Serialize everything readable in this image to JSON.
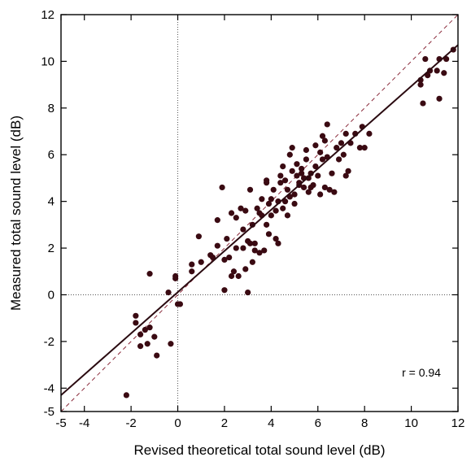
{
  "chart_data": {
    "type": "scatter",
    "title": "",
    "xlabel": "Revised theoretical total sound level (dB)",
    "ylabel": "Measured total sound level (dB)",
    "xlim": [
      -5,
      12
    ],
    "ylim": [
      -5,
      12
    ],
    "x_ticks": [
      -5,
      -4,
      -2,
      0,
      2,
      4,
      6,
      8,
      10,
      12
    ],
    "x_tick_labels": [
      "-5",
      "-4",
      "-2",
      "0",
      "2",
      "4",
      "6",
      "8",
      "10",
      "12"
    ],
    "y_ticks": [
      -5,
      -4,
      -2,
      0,
      2,
      4,
      6,
      8,
      10,
      12
    ],
    "y_tick_labels": [
      "-5",
      "-4",
      "-2",
      "0",
      "2",
      "4",
      "6",
      "8",
      "10",
      "12"
    ],
    "grid": false,
    "reference_lines": {
      "x_zero_dotted": true,
      "y_zero_dotted": true
    },
    "annotation": "r = 0.94",
    "colors": {
      "points": "#3a0a12",
      "fit_line": "#2a0a10",
      "identity_line": "#8a2a3a",
      "zero_lines": "#555555"
    },
    "fit_line": {
      "style": "solid",
      "points": [
        [
          -5,
          -4.3
        ],
        [
          12,
          10.7
        ]
      ]
    },
    "identity_line": {
      "style": "dashed",
      "points": [
        [
          -5,
          -5
        ],
        [
          12,
          12
        ]
      ]
    },
    "series": [
      {
        "points": [
          [
            -2.2,
            -4.3
          ],
          [
            -1.8,
            -1.2
          ],
          [
            -1.8,
            -0.9
          ],
          [
            -1.6,
            -1.7
          ],
          [
            -1.6,
            -2.2
          ],
          [
            -1.4,
            -1.5
          ],
          [
            -1.3,
            -2.1
          ],
          [
            -1.2,
            0.9
          ],
          [
            -1.2,
            -1.4
          ],
          [
            -1.0,
            -1.8
          ],
          [
            -0.9,
            -2.6
          ],
          [
            -0.4,
            0.1
          ],
          [
            -0.3,
            -2.1
          ],
          [
            -0.1,
            0.8
          ],
          [
            -0.1,
            0.7
          ],
          [
            0.0,
            -0.4
          ],
          [
            0.1,
            -0.4
          ],
          [
            0.6,
            1.0
          ],
          [
            0.6,
            1.3
          ],
          [
            0.9,
            2.5
          ],
          [
            1.0,
            1.4
          ],
          [
            1.4,
            1.7
          ],
          [
            1.5,
            1.6
          ],
          [
            1.7,
            3.2
          ],
          [
            1.7,
            2.1
          ],
          [
            1.9,
            4.6
          ],
          [
            2.0,
            1.5
          ],
          [
            2.0,
            0.2
          ],
          [
            2.1,
            2.4
          ],
          [
            2.2,
            1.6
          ],
          [
            2.3,
            3.5
          ],
          [
            2.3,
            0.8
          ],
          [
            2.4,
            1.0
          ],
          [
            2.5,
            2.0
          ],
          [
            2.5,
            3.3
          ],
          [
            2.6,
            0.8
          ],
          [
            2.7,
            3.7
          ],
          [
            2.8,
            2.8
          ],
          [
            2.8,
            2.0
          ],
          [
            2.9,
            3.6
          ],
          [
            2.9,
            1.1
          ],
          [
            3.0,
            0.1
          ],
          [
            3.0,
            2.3
          ],
          [
            3.1,
            2.2
          ],
          [
            3.1,
            4.5
          ],
          [
            3.2,
            1.4
          ],
          [
            3.2,
            3.0
          ],
          [
            3.3,
            1.9
          ],
          [
            3.3,
            2.2
          ],
          [
            3.4,
            3.7
          ],
          [
            3.5,
            1.8
          ],
          [
            3.5,
            3.5
          ],
          [
            3.6,
            4.1
          ],
          [
            3.6,
            3.4
          ],
          [
            3.7,
            1.9
          ],
          [
            3.8,
            4.9
          ],
          [
            3.8,
            3.0
          ],
          [
            3.8,
            4.8
          ],
          [
            3.9,
            2.6
          ],
          [
            3.9,
            3.9
          ],
          [
            4.0,
            4.1
          ],
          [
            4.0,
            3.4
          ],
          [
            4.1,
            4.5
          ],
          [
            4.2,
            3.6
          ],
          [
            4.2,
            2.4
          ],
          [
            4.3,
            2.2
          ],
          [
            4.3,
            4.0
          ],
          [
            4.4,
            5.1
          ],
          [
            4.4,
            4.8
          ],
          [
            4.5,
            3.7
          ],
          [
            4.5,
            5.5
          ],
          [
            4.6,
            4.0
          ],
          [
            4.6,
            4.9
          ],
          [
            4.7,
            3.4
          ],
          [
            4.7,
            4.5
          ],
          [
            4.8,
            6.0
          ],
          [
            4.8,
            4.2
          ],
          [
            4.9,
            5.3
          ],
          [
            4.9,
            6.3
          ],
          [
            5.0,
            4.3
          ],
          [
            5.0,
            3.9
          ],
          [
            5.1,
            5.1
          ],
          [
            5.1,
            5.6
          ],
          [
            5.2,
            4.7
          ],
          [
            5.2,
            4.8
          ],
          [
            5.3,
            5.2
          ],
          [
            5.3,
            5.4
          ],
          [
            5.4,
            5.0
          ],
          [
            5.4,
            4.6
          ],
          [
            5.5,
            5.8
          ],
          [
            5.5,
            6.2
          ],
          [
            5.6,
            5.0
          ],
          [
            5.6,
            4.4
          ],
          [
            5.7,
            5.2
          ],
          [
            5.7,
            4.6
          ],
          [
            5.8,
            4.7
          ],
          [
            5.9,
            5.5
          ],
          [
            5.9,
            6.4
          ],
          [
            6.0,
            5.1
          ],
          [
            6.1,
            4.3
          ],
          [
            6.1,
            6.1
          ],
          [
            6.2,
            5.8
          ],
          [
            6.2,
            6.8
          ],
          [
            6.3,
            6.6
          ],
          [
            6.3,
            4.6
          ],
          [
            6.4,
            7.3
          ],
          [
            6.4,
            5.9
          ],
          [
            6.5,
            4.5
          ],
          [
            6.6,
            5.2
          ],
          [
            6.7,
            4.4
          ],
          [
            6.8,
            6.3
          ],
          [
            6.9,
            5.8
          ],
          [
            7.0,
            6.5
          ],
          [
            7.1,
            6.0
          ],
          [
            7.2,
            6.9
          ],
          [
            7.2,
            5.1
          ],
          [
            7.3,
            5.3
          ],
          [
            7.4,
            6.5
          ],
          [
            7.6,
            6.9
          ],
          [
            7.8,
            6.3
          ],
          [
            7.9,
            7.2
          ],
          [
            8.0,
            6.3
          ],
          [
            8.2,
            6.9
          ],
          [
            10.4,
            9.0
          ],
          [
            10.4,
            9.2
          ],
          [
            10.5,
            8.2
          ],
          [
            10.6,
            10.1
          ],
          [
            10.7,
            9.4
          ],
          [
            10.8,
            9.6
          ],
          [
            11.1,
            9.6
          ],
          [
            11.2,
            10.1
          ],
          [
            11.2,
            8.4
          ],
          [
            11.4,
            9.5
          ],
          [
            11.5,
            10.1
          ],
          [
            11.8,
            10.5
          ]
        ]
      }
    ]
  }
}
